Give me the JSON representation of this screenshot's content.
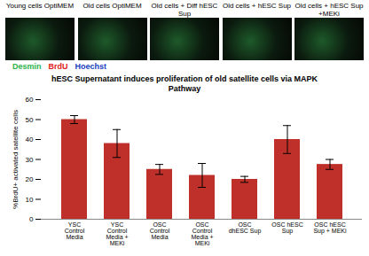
{
  "figure": {
    "panel_labels": [
      "Young cells OptiMEM",
      "Old cells OptiMEM",
      "Old cells + Diff hESC Sup",
      "Old cells + hESC Sup",
      "Old cells + hESC Sup +MEKi"
    ],
    "stain_legend": [
      {
        "name": "Desmin",
        "color": "#2db34a"
      },
      {
        "name": "BrdU",
        "color": "#e02020"
      },
      {
        "name": "Hoechst",
        "color": "#2040c0"
      }
    ]
  },
  "chart_data": {
    "type": "bar",
    "title": "hESC Supernatant induces proliferation of old satellite cells via MAPK Pathway",
    "y_label": "%BrdU+ activated satellite cells",
    "categories": [
      "YSC Control Media",
      "YSC Control Media + MEKi",
      "OSC Control Media",
      "OSC Control Media + MEKi",
      "OSC dhESC Sup",
      "OSC hESC Sup",
      "OSC hESC Sup + MEKi"
    ],
    "values": [
      50,
      38,
      25,
      22,
      20,
      40,
      27.5
    ],
    "errors": [
      2,
      7,
      2.5,
      6,
      1.5,
      7,
      2.5
    ],
    "color": "#c0302a",
    "ylim": [
      0,
      60
    ],
    "yticks": [
      0,
      10,
      20,
      30,
      40,
      50,
      60
    ],
    "grid": false
  }
}
